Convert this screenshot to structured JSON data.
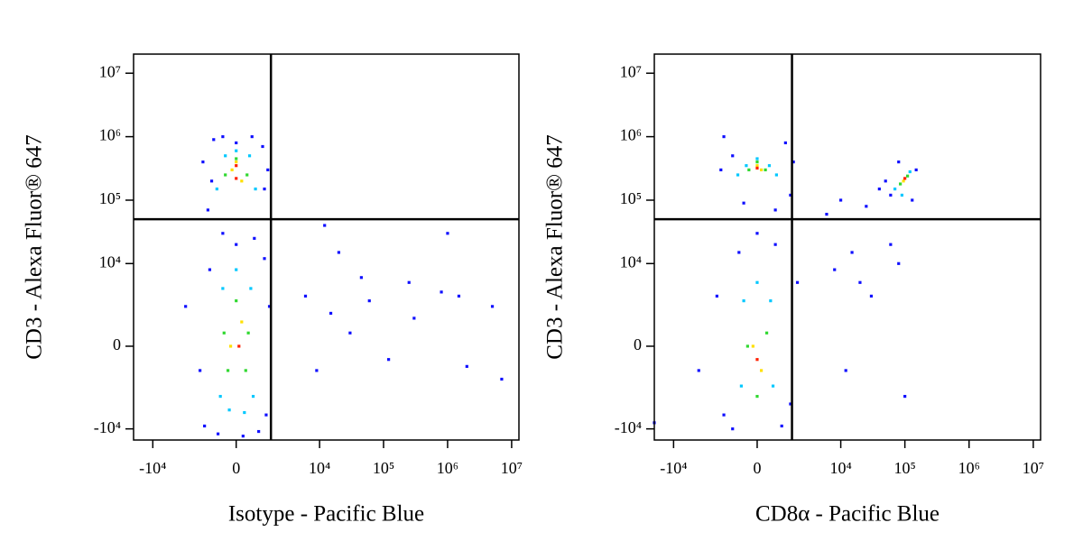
{
  "chart_data": [
    {
      "type": "scatter",
      "xlabel": "Isotype - Pacific Blue",
      "ylabel": "CD3 - Alexa Fluor® 647",
      "xscale": "asinh",
      "yscale": "asinh",
      "xlim": [
        -20000,
        13000000
      ],
      "ylim": [
        -15000,
        20000000
      ],
      "xticks": [
        {
          "value": -10000,
          "label": "-10⁴"
        },
        0,
        {
          "value": 10000,
          "label": "10⁴"
        },
        {
          "value": 100000,
          "label": "10⁵"
        },
        {
          "value": 1000000,
          "label": "10⁶"
        },
        {
          "value": 10000000,
          "label": "10⁷"
        }
      ],
      "yticks": [
        {
          "value": -10000,
          "label": "-10⁴"
        },
        0,
        {
          "value": 10000,
          "label": "10⁴"
        },
        {
          "value": 100000,
          "label": "10⁵"
        },
        {
          "value": 1000000,
          "label": "10⁶"
        },
        {
          "value": 10000000,
          "label": "10⁷"
        }
      ],
      "quadrant": {
        "x": 1600,
        "y": 50000
      },
      "series": [
        {
          "color": "#1010ff",
          "x": [
            -1200,
            -900,
            -500,
            0,
            600,
            1100,
            1400,
            -1000,
            1200,
            -1500,
            -1400,
            -700,
            250,
            900,
            1300,
            -1700,
            1500,
            -1100,
            1200,
            0,
            -500,
            700,
            6000,
            9000,
            15000,
            30000,
            60000,
            120000,
            300000,
            800000,
            2000000,
            5000000,
            20000,
            45000,
            250000,
            1500000,
            7000000,
            12000,
            1000000,
            -3000
          ],
          "y": [
            70000,
            900000,
            1000000,
            800000,
            1000000,
            700000,
            300000,
            200000,
            150000,
            400000,
            -9000,
            -12000,
            -13000,
            -11000,
            -6000,
            -1000,
            2000,
            8000,
            12000,
            20000,
            30000,
            25000,
            3000,
            -1000,
            1500,
            500,
            2500,
            -500,
            1200,
            3500,
            -800,
            2000,
            15000,
            6000,
            5000,
            3000,
            -1500,
            40000,
            30000,
            2000
          ]
        },
        {
          "color": "#00c8ff",
          "x": [
            -750,
            750,
            -400,
            500,
            0,
            -600,
            650,
            -500,
            550,
            0,
            -250,
            300
          ],
          "y": [
            150000,
            150000,
            500000,
            500000,
            600000,
            -3000,
            -3000,
            4000,
            4000,
            8000,
            -5000,
            -5500
          ]
        },
        {
          "color": "#30d830",
          "x": [
            -400,
            400,
            0,
            -300,
            350,
            0,
            -450,
            450
          ],
          "y": [
            250000,
            250000,
            450000,
            -1000,
            -1000,
            2500,
            500,
            500
          ]
        },
        {
          "color": "#ffe000",
          "x": [
            -150,
            200,
            0,
            -200,
            200
          ],
          "y": [
            300000,
            200000,
            400000,
            0,
            1000
          ]
        },
        {
          "color": "#ff2000",
          "x": [
            0,
            100,
            0
          ],
          "y": [
            350000,
            0,
            220000
          ]
        }
      ]
    },
    {
      "type": "scatter",
      "xlabel": "CD8α - Pacific Blue",
      "ylabel": "CD3 - Alexa Fluor® 647",
      "xscale": "asinh",
      "yscale": "asinh",
      "xlim": [
        -20000,
        13000000
      ],
      "ylim": [
        -15000,
        20000000
      ],
      "xticks": [
        {
          "value": -10000,
          "label": "-10⁴"
        },
        0,
        {
          "value": 10000,
          "label": "10⁴"
        },
        {
          "value": 100000,
          "label": "10⁵"
        },
        {
          "value": 1000000,
          "label": "10⁶"
        },
        {
          "value": 10000000,
          "label": "10⁷"
        }
      ],
      "yticks": [
        {
          "value": -10000,
          "label": "-10⁴"
        },
        0,
        {
          "value": 10000,
          "label": "10⁴"
        },
        {
          "value": 100000,
          "label": "10⁵"
        },
        {
          "value": 1000000,
          "label": "10⁶"
        },
        {
          "value": 10000000,
          "label": "10⁷"
        }
      ],
      "quadrant": {
        "x": 1600,
        "y": 50000
      },
      "series": [
        {
          "color": "#1010ff",
          "x": [
            -1500,
            -1000,
            1200,
            1500,
            -500,
            700,
            -1700,
            1700,
            60000,
            150000,
            50000,
            130000,
            80000,
            -1500,
            -1000,
            1000,
            1500,
            -700,
            700,
            -2000,
            2000,
            0,
            8000,
            15000,
            25000,
            40000,
            10000,
            20000,
            60000,
            100000,
            6000,
            30000,
            12000,
            80000,
            -20000,
            -4000
          ],
          "y": [
            1000000,
            500000,
            800000,
            120000,
            90000,
            70000,
            300000,
            400000,
            120000,
            300000,
            200000,
            100000,
            400000,
            -6000,
            -10000,
            -9000,
            -4000,
            15000,
            20000,
            3000,
            5000,
            30000,
            8000,
            15000,
            80000,
            150000,
            100000,
            5000,
            20000,
            -3000,
            60000,
            3000,
            -1000,
            10000,
            -8000,
            -1000
          ]
        },
        {
          "color": "#00c8ff",
          "x": [
            -750,
            750,
            0,
            -400,
            450,
            70000,
            120000,
            90000,
            -600,
            600,
            0,
            -500,
            500
          ],
          "y": [
            250000,
            250000,
            450000,
            350000,
            350000,
            150000,
            280000,
            120000,
            -2000,
            -2000,
            5000,
            2500,
            2500
          ]
        },
        {
          "color": "#30d830",
          "x": [
            -300,
            300,
            0,
            85000,
            110000,
            -350,
            350,
            0
          ],
          "y": [
            300000,
            300000,
            400000,
            180000,
            240000,
            0,
            500,
            -3000
          ]
        },
        {
          "color": "#ffe000",
          "x": [
            0,
            150,
            95000,
            -150,
            150
          ],
          "y": [
            350000,
            300000,
            200000,
            0,
            -1000
          ]
        },
        {
          "color": "#ff2000",
          "x": [
            0,
            100000,
            0
          ],
          "y": [
            320000,
            220000,
            -500
          ]
        }
      ]
    }
  ]
}
